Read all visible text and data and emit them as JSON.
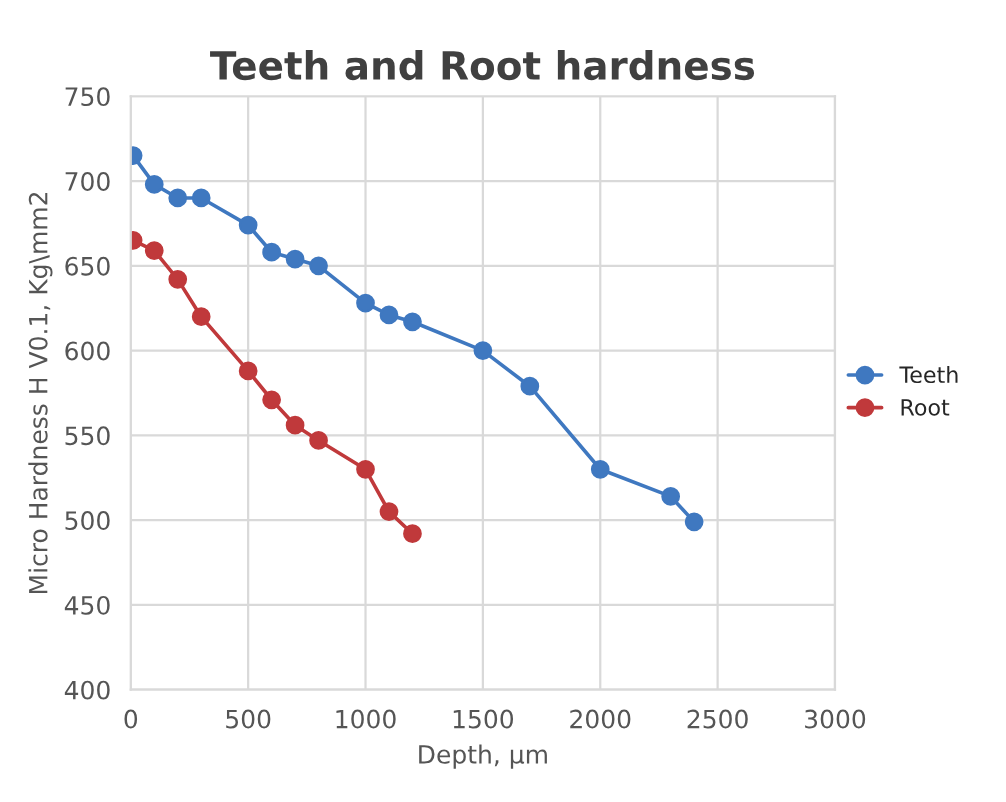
{
  "chart_data": {
    "type": "line",
    "title": "Teeth and Root hardness",
    "xlabel": "Depth, µm",
    "ylabel": "Micro Hardness H V0.1, Kg\\mm2",
    "series": [
      {
        "name": "Teeth",
        "color": "#3f78c0",
        "x": [
          10,
          100,
          200,
          300,
          500,
          600,
          700,
          800,
          1000,
          1100,
          1200,
          1500,
          1700,
          2000,
          2300,
          2400
        ],
        "values": [
          715,
          698,
          690,
          690,
          674,
          658,
          654,
          650,
          628,
          621,
          617,
          600,
          579,
          530,
          514,
          499
        ]
      },
      {
        "name": "Root",
        "color": "#c0393b",
        "x": [
          10,
          100,
          200,
          300,
          500,
          600,
          700,
          800,
          1000,
          1100,
          1200
        ],
        "values": [
          665,
          659,
          642,
          620,
          588,
          571,
          556,
          547,
          530,
          505,
          492
        ]
      }
    ],
    "xlim": [
      0,
      3000
    ],
    "xticks": [
      0,
      500,
      1000,
      1500,
      2000,
      2500,
      3000
    ],
    "ylim": [
      400,
      750
    ],
    "yticks": [
      400,
      450,
      500,
      550,
      600,
      650,
      700,
      750
    ],
    "grid": true,
    "legend": "right",
    "marker": "circle",
    "line_style": "solid"
  }
}
